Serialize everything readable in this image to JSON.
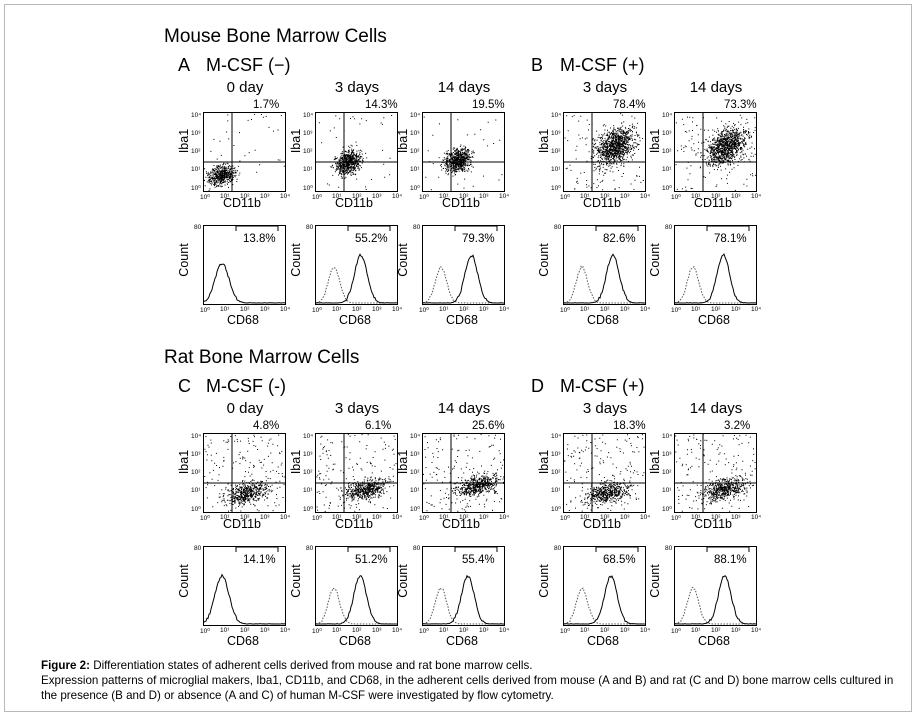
{
  "sections": [
    {
      "title": "Mouse Bone Marrow Cells",
      "panels": [
        {
          "letter": "A",
          "condition": "M-CSF (−)",
          "days": [
            {
              "day": "0 day",
              "scatter_pct": "1.7%",
              "hist_pct": "13.8%",
              "density": "low",
              "dotted": false
            },
            {
              "day": "3 days",
              "scatter_pct": "14.3%",
              "hist_pct": "55.2%",
              "density": "mid",
              "dotted": true
            },
            {
              "day": "14 days",
              "scatter_pct": "19.5%",
              "hist_pct": "79.3%",
              "density": "mid",
              "dotted": true
            }
          ]
        },
        {
          "letter": "B",
          "condition": "M-CSF (+)",
          "days": [
            {
              "day": "3 days",
              "scatter_pct": "78.4%",
              "hist_pct": "82.6%",
              "density": "high",
              "dotted": true
            },
            {
              "day": "14 days",
              "scatter_pct": "73.3%",
              "hist_pct": "78.1%",
              "density": "high",
              "dotted": true
            }
          ]
        }
      ]
    },
    {
      "title": "Rat Bone Marrow Cells",
      "panels": [
        {
          "letter": "C",
          "condition": "M-CSF (-)",
          "days": [
            {
              "day": "0 day",
              "scatter_pct": "4.8%",
              "hist_pct": "14.1%",
              "density": "rat",
              "dotted": false
            },
            {
              "day": "3 days",
              "scatter_pct": "6.1%",
              "hist_pct": "51.2%",
              "density": "rat",
              "dotted": true
            },
            {
              "day": "14 days",
              "scatter_pct": "25.6%",
              "hist_pct": "55.4%",
              "density": "rat",
              "dotted": true
            }
          ]
        },
        {
          "letter": "D",
          "condition": "M-CSF (+)",
          "days": [
            {
              "day": "3 days",
              "scatter_pct": "18.3%",
              "hist_pct": "68.5%",
              "density": "rat",
              "dotted": true
            },
            {
              "day": "14 days",
              "scatter_pct": "3.2%",
              "hist_pct": "88.1%",
              "density": "rat",
              "dotted": true
            }
          ]
        }
      ]
    }
  ],
  "axes": {
    "scatter_x": "CD11b",
    "scatter_y": "Iba1",
    "hist_x": "CD68",
    "hist_y": "Count",
    "log_ticks": [
      "10⁰",
      "10¹",
      "10²",
      "10³",
      "10⁴"
    ],
    "hist_top_tick": "80"
  },
  "caption": {
    "label": "Figure 2:",
    "title": " Differentiation states of adherent cells derived from mouse and rat bone marrow cells.",
    "body": "Expression patterns of microglial makers, Iba1, CD11b, and CD68, in the adherent cells derived from mouse (A and B) and rat (C and D) bone marrow cells cultured in the presence (B and D) or absence (A and C) of human M-CSF were investigated by flow cytometry."
  }
}
